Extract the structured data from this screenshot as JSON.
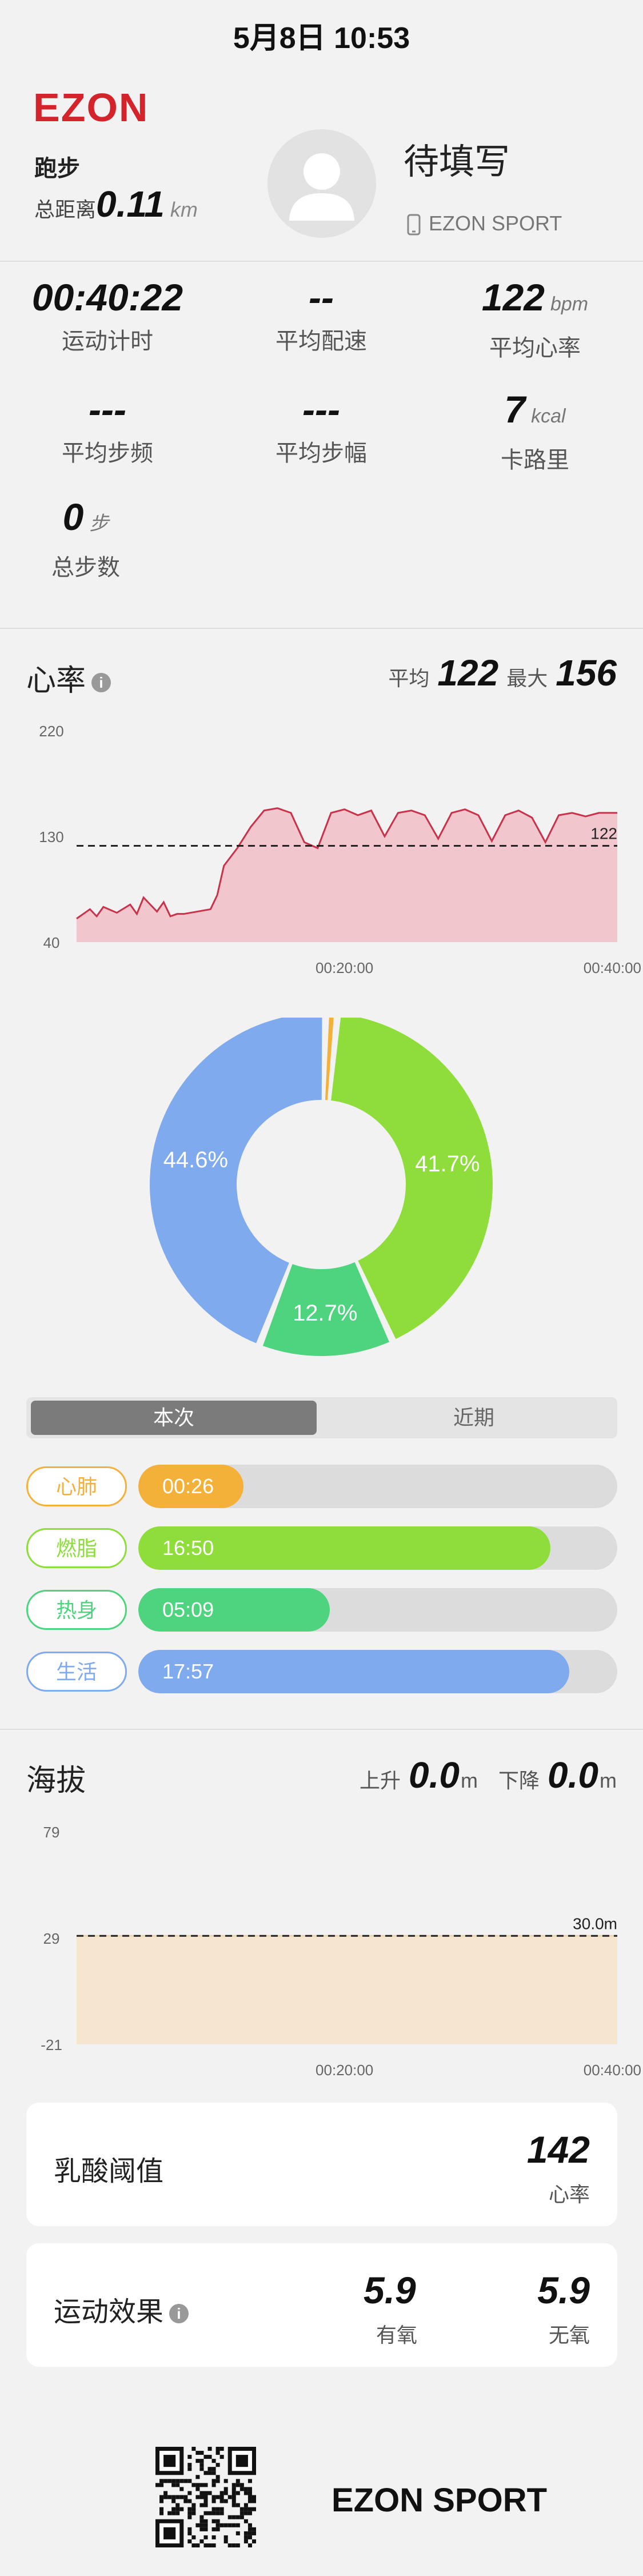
{
  "status_time": "5月8日 10:53",
  "header": {
    "brand": "EZON",
    "sport_type": "跑步",
    "total_distance_label": "总距离",
    "total_distance_value": "0.11",
    "total_distance_unit": "km",
    "username": "待填写",
    "device": "EZON SPORT"
  },
  "stats": [
    {
      "value": "00:40:22",
      "unit": "",
      "label": "运动计时"
    },
    {
      "value": "--",
      "unit": "",
      "label": "平均配速"
    },
    {
      "value": "122",
      "unit": "bpm",
      "label": "平均心率"
    },
    {
      "value": "---",
      "unit": "",
      "label": "平均步频"
    },
    {
      "value": "---",
      "unit": "",
      "label": "平均步幅"
    },
    {
      "value": "7",
      "unit": "kcal",
      "label": "卡路里"
    },
    {
      "value": "0",
      "unit": "步",
      "label": "总步数"
    }
  ],
  "heart_rate": {
    "title": "心率",
    "avg_label": "平均",
    "avg_value": "122",
    "max_label": "最大",
    "max_value": "156"
  },
  "chart_data": [
    {
      "type": "area",
      "title": "心率",
      "y_ticks": [
        "220",
        "130",
        "40"
      ],
      "x_ticks": [
        "00:20:00",
        "00:40:00"
      ],
      "ylim": [
        40,
        220
      ],
      "xlim_minutes": [
        0,
        40.37
      ],
      "avg_line": 122,
      "avg_label": "122",
      "color": "#c8324a",
      "fill": "#f2c6cd",
      "series": [
        {
          "x": [
            0,
            1,
            1.5,
            2,
            3,
            4,
            4.5,
            5,
            6,
            6.5,
            7,
            7.5,
            8,
            9,
            10,
            10.5,
            11,
            12,
            13,
            14,
            15,
            16,
            17,
            18,
            19,
            20,
            21,
            22,
            23,
            24,
            25,
            26,
            27,
            28,
            29,
            30,
            31,
            32,
            33,
            34,
            35,
            36,
            37,
            38,
            39,
            40.37
          ],
          "y": [
            60,
            68,
            62,
            70,
            65,
            72,
            64,
            78,
            66,
            74,
            62,
            64,
            64,
            66,
            68,
            80,
            105,
            120,
            138,
            152,
            154,
            150,
            125,
            120,
            150,
            153,
            148,
            152,
            130,
            150,
            152,
            148,
            128,
            150,
            153,
            148,
            126,
            148,
            152,
            146,
            125,
            148,
            150,
            147,
            150,
            150
          ]
        }
      ]
    },
    {
      "type": "pie",
      "title": "",
      "slices": [
        {
          "label": "心肺",
          "value": 1.1,
          "color": "#f4b13a",
          "text": ""
        },
        {
          "label": "燃脂",
          "value": 41.7,
          "color": "#8edd3a",
          "text": "41.7%"
        },
        {
          "label": "热身",
          "value": 12.7,
          "color": "#4ed37e",
          "text": "12.7%"
        },
        {
          "label": "生活",
          "value": 44.6,
          "color": "#7faaee",
          "text": "44.6%"
        }
      ]
    },
    {
      "type": "area",
      "title": "海拔",
      "y_ticks": [
        "79",
        "29",
        "-21"
      ],
      "x_ticks": [
        "00:20:00",
        "00:40:00"
      ],
      "ylim": [
        -21,
        79
      ],
      "xlim_minutes": [
        0,
        40.37
      ],
      "avg_line": 30,
      "avg_label": "30.0m",
      "color": "#e9d5b4",
      "fill": "#f6e6cf",
      "series": [
        {
          "x": [
            0,
            40.37
          ],
          "y": [
            30,
            30
          ]
        }
      ]
    }
  ],
  "segment": {
    "current": "本次",
    "recent": "近期"
  },
  "zones": [
    {
      "name": "心肺",
      "time": "00:26",
      "color": "#f4b13a",
      "fraction": 0.22
    },
    {
      "name": "燃脂",
      "time": "16:50",
      "color": "#8edd3a",
      "fraction": 0.86
    },
    {
      "name": "热身",
      "time": "05:09",
      "color": "#4ed37e",
      "fraction": 0.4
    },
    {
      "name": "生活",
      "time": "17:57",
      "color": "#7faaee",
      "fraction": 0.9
    }
  ],
  "altitude": {
    "title": "海拔",
    "up_label": "上升",
    "up_value": "0.0",
    "down_label": "下降",
    "down_value": "0.0",
    "unit": "m"
  },
  "lactate": {
    "title": "乳酸阈值",
    "value": "142",
    "label": "心率"
  },
  "effect": {
    "title": "运动效果",
    "aerobic_value": "5.9",
    "aerobic_label": "有氧",
    "anaerobic_value": "5.9",
    "anaerobic_label": "无氧"
  },
  "footer": {
    "brand": "EZON SPORT"
  },
  "icons": [
    "user-avatar-icon",
    "phone-icon",
    "info-icon",
    "qr-code-icon"
  ]
}
